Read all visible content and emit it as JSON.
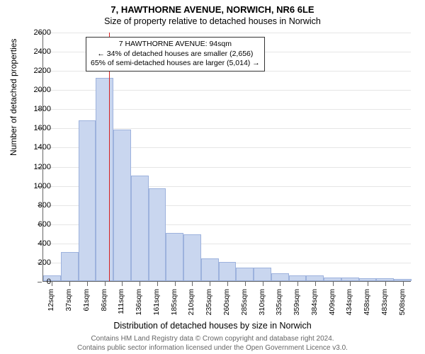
{
  "title_main": "7, HAWTHORNE AVENUE, NORWICH, NR6 6LE",
  "title_sub": "Size of property relative to detached houses in Norwich",
  "ylabel": "Number of detached properties",
  "xlabel": "Distribution of detached houses by size in Norwich",
  "footer_line1": "Contains HM Land Registry data © Crown copyright and database right 2024.",
  "footer_line2": "Contains public sector information licensed under the Open Government Licence v3.0.",
  "annotation": {
    "line1": "7 HAWTHORNE AVENUE: 94sqm",
    "line2": "← 34% of detached houses are smaller (2,656)",
    "line3": "65% of semi-detached houses are larger (5,014) →"
  },
  "chart": {
    "type": "histogram",
    "ylim": [
      0,
      2600
    ],
    "ytick_step": 200,
    "background_color": "#ffffff",
    "grid_color": "#e6e6e6",
    "axis_color": "#666666",
    "bar_fill": "#c9d6ef",
    "bar_border": "#9db2dd",
    "indicator_color": "#d62020",
    "indicator_value_sqm": 94,
    "x_start": 0,
    "x_bin_width": 25,
    "x_labels": [
      "12sqm",
      "37sqm",
      "61sqm",
      "86sqm",
      "111sqm",
      "136sqm",
      "161sqm",
      "185sqm",
      "210sqm",
      "235sqm",
      "260sqm",
      "285sqm",
      "310sqm",
      "335sqm",
      "359sqm",
      "384sqm",
      "409sqm",
      "434sqm",
      "458sqm",
      "483sqm",
      "508sqm"
    ],
    "bars": [
      60,
      300,
      1680,
      2120,
      1580,
      1100,
      970,
      500,
      490,
      240,
      200,
      140,
      140,
      80,
      60,
      60,
      40,
      40,
      30,
      30,
      20
    ],
    "title_fontsize": 13,
    "label_fontsize": 12,
    "tick_fontsize": 11
  }
}
